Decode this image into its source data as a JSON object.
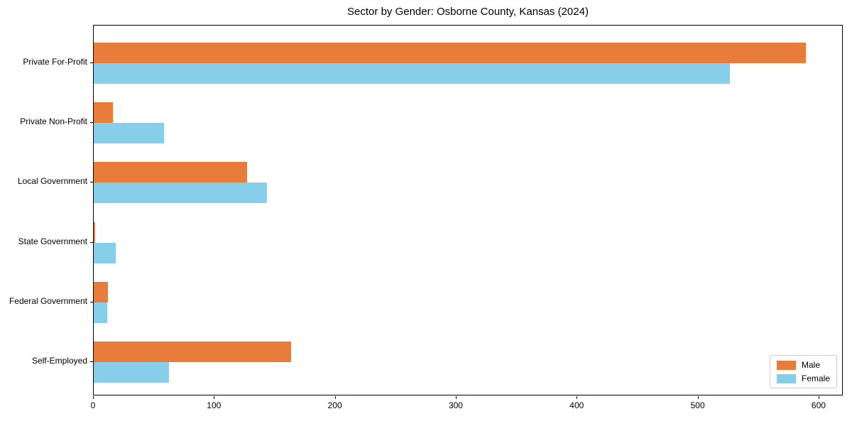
{
  "chart_data": {
    "type": "bar",
    "orientation": "horizontal",
    "title": "Sector by Gender: Osborne County, Kansas (2024)",
    "categories": [
      "Private For-Profit",
      "Private Non-Profit",
      "Local Government",
      "State Government",
      "Federal Government",
      "Self-Employed"
    ],
    "series": [
      {
        "name": "Male",
        "color": "#e87d3b",
        "values": [
          589,
          16,
          127,
          1,
          12,
          163
        ]
      },
      {
        "name": "Female",
        "color": "#87ceeb",
        "values": [
          526,
          58,
          143,
          18,
          11,
          62
        ]
      }
    ],
    "xlabel": "",
    "ylabel": "",
    "xlim": [
      0,
      620
    ],
    "x_ticks": [
      0,
      100,
      200,
      300,
      400,
      500,
      600
    ],
    "grid": false,
    "legend": {
      "position": "lower right"
    },
    "colors": {
      "axis": "#000000",
      "legend_border": "#cccccc",
      "background": "#ffffff"
    }
  }
}
